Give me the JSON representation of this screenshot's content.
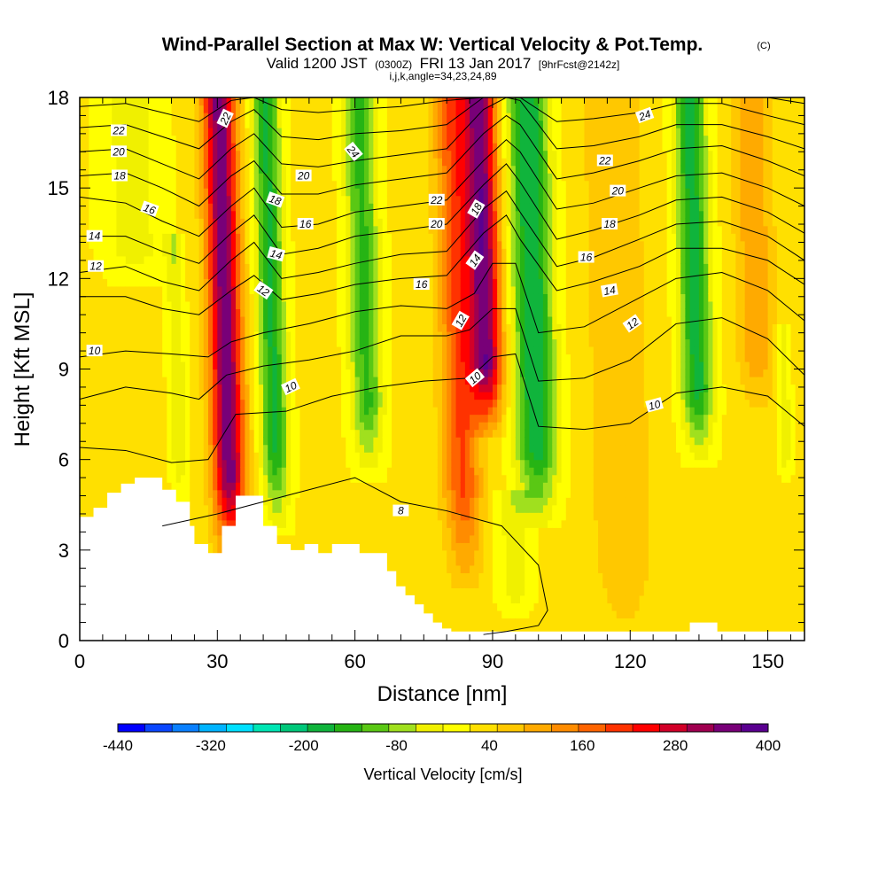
{
  "header": {
    "title": "Wind-Parallel Section at Max W: Vertical Velocity & Pot.Temp.",
    "copyright": "(C)",
    "valid_prefix": "Valid 1200 JST",
    "valid_utc": "(0300Z)",
    "valid_date": "FRI 13 Jan 2017",
    "forecast": "[9hrFcst@2142z]",
    "indices": "i,j,k,angle=34,23,24,89"
  },
  "chart_data": {
    "type": "heatmap",
    "xlabel": "Distance [nm]",
    "ylabel": "Height [Kft MSL]",
    "xlim": [
      0,
      158
    ],
    "ylim": [
      0,
      18
    ],
    "xticks": [
      "0",
      "30",
      "60",
      "90",
      "120",
      "150"
    ],
    "xtick_values": [
      0,
      30,
      60,
      90,
      120,
      150
    ],
    "yticks": [
      "0",
      "3",
      "6",
      "9",
      "12",
      "15",
      "18"
    ],
    "ytick_values": [
      0,
      3,
      6,
      9,
      12,
      15,
      18
    ],
    "field": "Vertical Velocity [cm/s]",
    "colorbar": {
      "title": "Vertical Velocity [cm/s]",
      "ticks": [
        "-440",
        "-320",
        "-200",
        "-80",
        "40",
        "160",
        "280",
        "400"
      ],
      "tick_values": [
        -440,
        -320,
        -200,
        -80,
        40,
        160,
        280,
        400
      ],
      "colors": [
        "#0000ff",
        "#0a46ff",
        "#0a80ff",
        "#00b4ff",
        "#00e0ff",
        "#00e6b4",
        "#00c87a",
        "#10b43c",
        "#26b414",
        "#5ac814",
        "#a0e01e",
        "#f0f000",
        "#ffff00",
        "#ffe000",
        "#ffc800",
        "#ffaa00",
        "#ff8c00",
        "#ff6400",
        "#ff3200",
        "#ff0000",
        "#d20028",
        "#a00050",
        "#780078",
        "#5a0090"
      ]
    },
    "velocity_features": [
      {
        "kind": "updraft",
        "x": 33,
        "y_bottom": 3.2,
        "y_top": 18,
        "peak": 330,
        "half_width": 3.5
      },
      {
        "kind": "downdraft",
        "x": 43,
        "y_bottom": 4.2,
        "y_top": 18,
        "peak": -190,
        "half_width": 3.0
      },
      {
        "kind": "downdraft",
        "x": 22,
        "y_bottom": 4.8,
        "y_top": 13,
        "peak": -70,
        "half_width": 2.0
      },
      {
        "kind": "downdraft",
        "x": 12,
        "y_bottom": 12,
        "y_top": 18,
        "peak": -60,
        "half_width": 7.0
      },
      {
        "kind": "downdraft",
        "x": 63,
        "y_bottom": 6.0,
        "y_top": 18,
        "peak": -160,
        "half_width": 3.5
      },
      {
        "kind": "updraft",
        "x": 84,
        "y_bottom": 2.5,
        "y_top": 18,
        "peak": 170,
        "half_width": 4.0
      },
      {
        "kind": "updraft",
        "x": 89,
        "y_bottom": 7.5,
        "y_top": 18,
        "peak": 320,
        "half_width": 3.5
      },
      {
        "kind": "downdraft",
        "x": 100,
        "y_bottom": 4.5,
        "y_top": 18,
        "peak": -220,
        "half_width": 4.5
      },
      {
        "kind": "downdraft",
        "x": 95,
        "y_bottom": 1.0,
        "y_top": 4.5,
        "peak": -60,
        "half_width": 4.0
      },
      {
        "kind": "updraft",
        "x": 119,
        "y_bottom": 0.3,
        "y_top": 18,
        "peak": 50,
        "half_width": 7.0
      },
      {
        "kind": "downdraft",
        "x": 135,
        "y_bottom": 6.5,
        "y_top": 18,
        "peak": -200,
        "half_width": 3.5
      },
      {
        "kind": "updraft",
        "x": 148,
        "y_bottom": 8,
        "y_top": 18,
        "peak": 90,
        "half_width": 4.0
      },
      {
        "kind": "downdraft",
        "x": 154,
        "y_bottom": 5.5,
        "y_top": 10,
        "peak": -70,
        "half_width": 1.5
      }
    ],
    "terrain": {
      "x": [
        0,
        3,
        3,
        6,
        6,
        9,
        9,
        12,
        12,
        18,
        18,
        21,
        21,
        24,
        24,
        25,
        25,
        28,
        28,
        31,
        31,
        34,
        34,
        40,
        40,
        43,
        43,
        46,
        46,
        49,
        49,
        52,
        52,
        55,
        55,
        61,
        61,
        67,
        67,
        69,
        69,
        71,
        71,
        73,
        73,
        75,
        75,
        77,
        77,
        79,
        79,
        81,
        81,
        133,
        133,
        139,
        139,
        158
      ],
      "y": [
        4.1,
        4.1,
        4.4,
        4.4,
        4.9,
        4.9,
        5.2,
        5.2,
        5.4,
        5.4,
        5.0,
        5.0,
        4.6,
        4.6,
        3.8,
        3.8,
        3.2,
        3.2,
        2.9,
        2.9,
        3.8,
        3.8,
        4.8,
        4.8,
        3.8,
        3.8,
        3.2,
        3.2,
        3.0,
        3.0,
        3.2,
        3.2,
        2.9,
        2.9,
        3.2,
        3.2,
        2.9,
        2.9,
        2.3,
        2.3,
        1.8,
        1.8,
        1.5,
        1.5,
        1.2,
        1.2,
        0.9,
        0.9,
        0.6,
        0.6,
        0.4,
        0.4,
        0.3,
        0.3,
        0.6,
        0.6,
        0.3,
        0.3
      ]
    },
    "theta_contours": [
      {
        "value": "8",
        "x": [
          18,
          30,
          45,
          60,
          70,
          80,
          92,
          100,
          102,
          100,
          93,
          88
        ],
        "y": [
          3.8,
          4.2,
          4.8,
          5.4,
          4.6,
          4.3,
          3.8,
          2.5,
          1.0,
          0.5,
          0.3,
          0.2
        ]
      },
      {
        "value": "10",
        "x": [
          0,
          10,
          20,
          28,
          34,
          45,
          55,
          65,
          75,
          85,
          90,
          95,
          100,
          110,
          120,
          130,
          140,
          150,
          158
        ],
        "y": [
          6.4,
          6.3,
          5.9,
          6.0,
          7.5,
          7.6,
          8.1,
          8.4,
          8.6,
          8.7,
          9.4,
          9.5,
          7.1,
          7.0,
          7.2,
          8.2,
          8.4,
          8.1,
          7.1
        ]
      },
      {
        "value": "10b",
        "x": [
          0,
          10,
          20,
          26,
          32,
          40,
          50,
          60,
          70,
          80,
          85,
          90,
          95,
          100,
          110,
          120,
          130,
          140,
          150,
          158
        ],
        "y": [
          8.0,
          8.4,
          8.2,
          8.0,
          8.8,
          9.1,
          9.3,
          9.6,
          10.1,
          10.1,
          10.3,
          11.0,
          11.0,
          8.6,
          8.7,
          9.3,
          10.5,
          10.7,
          10.0,
          8.8
        ]
      },
      {
        "value": "10",
        "x": [
          0,
          10,
          20,
          28,
          33,
          40,
          50,
          60,
          70,
          80,
          86,
          90,
          95,
          100,
          110,
          120,
          130,
          140,
          150,
          158
        ],
        "y": [
          9.4,
          9.6,
          9.5,
          9.4,
          9.9,
          10.2,
          10.5,
          10.9,
          11.1,
          11.0,
          11.5,
          12.5,
          12.5,
          10.2,
          10.4,
          11.2,
          12.0,
          12.2,
          11.6,
          10.6
        ]
      },
      {
        "value": "12",
        "x": [
          0,
          10,
          18,
          26,
          33,
          38,
          44,
          52,
          60,
          70,
          80,
          88,
          93,
          96,
          104,
          112,
          122,
          130,
          140,
          150,
          158
        ],
        "y": [
          11.4,
          11.4,
          11.0,
          10.8,
          11.6,
          12.1,
          11.3,
          11.5,
          11.8,
          12.0,
          12.1,
          13.5,
          14.1,
          13.3,
          11.6,
          11.9,
          12.4,
          13.0,
          13.0,
          12.6,
          11.8
        ]
      },
      {
        "value": "12b",
        "x": [
          0,
          10,
          18,
          26,
          33,
          38,
          44,
          52,
          60,
          70,
          80,
          88,
          93,
          96,
          104,
          112,
          122,
          130,
          140,
          150,
          158
        ],
        "y": [
          12.2,
          12.4,
          11.9,
          11.6,
          12.6,
          13.2,
          12.0,
          12.2,
          12.5,
          12.8,
          12.9,
          14.3,
          14.9,
          14.2,
          12.4,
          12.7,
          13.3,
          13.8,
          13.9,
          13.4,
          12.6
        ]
      },
      {
        "value": "14",
        "x": [
          0,
          10,
          18,
          26,
          33,
          38,
          44,
          52,
          60,
          70,
          80,
          88,
          93,
          96,
          104,
          112,
          122,
          130,
          140,
          150,
          158
        ],
        "y": [
          13.4,
          13.4,
          12.9,
          12.5,
          13.5,
          14.1,
          12.8,
          13.0,
          13.4,
          13.6,
          13.8,
          15.1,
          15.8,
          15.2,
          13.3,
          13.6,
          14.1,
          14.6,
          14.7,
          14.2,
          13.5
        ]
      },
      {
        "value": "16",
        "x": [
          0,
          10,
          18,
          26,
          33,
          38,
          44,
          52,
          60,
          70,
          80,
          88,
          93,
          96,
          104,
          112,
          122,
          130,
          140,
          150,
          158
        ],
        "y": [
          14.7,
          14.5,
          13.9,
          13.4,
          14.4,
          15.0,
          13.7,
          13.8,
          14.2,
          14.4,
          14.6,
          15.9,
          16.6,
          16.2,
          14.3,
          14.5,
          15.0,
          15.4,
          15.5,
          15.0,
          14.4
        ]
      },
      {
        "value": "18",
        "x": [
          0,
          10,
          18,
          26,
          33,
          38,
          44,
          52,
          60,
          70,
          80,
          88,
          93,
          96,
          104,
          112,
          122,
          130,
          140,
          150,
          158
        ],
        "y": [
          15.4,
          15.5,
          15.0,
          14.4,
          15.4,
          15.9,
          14.8,
          14.8,
          15.1,
          15.3,
          15.5,
          16.8,
          17.4,
          17.1,
          15.3,
          15.5,
          15.9,
          16.3,
          16.4,
          15.9,
          15.4
        ]
      },
      {
        "value": "20",
        "x": [
          0,
          10,
          18,
          26,
          33,
          38,
          44,
          52,
          60,
          70,
          80,
          88,
          93,
          96,
          104,
          112,
          122,
          130,
          140,
          150,
          158
        ],
        "y": [
          16.2,
          16.3,
          15.8,
          15.3,
          16.3,
          16.8,
          15.8,
          15.7,
          15.9,
          16.1,
          16.3,
          17.6,
          18.0,
          17.9,
          16.3,
          16.4,
          16.7,
          17.1,
          17.1,
          16.7,
          16.3
        ]
      },
      {
        "value": "22",
        "x": [
          0,
          10,
          18,
          26,
          33,
          38,
          44,
          52,
          60,
          70,
          80,
          88,
          93,
          96,
          104,
          112,
          122,
          130,
          140,
          150,
          158
        ],
        "y": [
          17.0,
          17.1,
          16.7,
          16.3,
          17.2,
          17.6,
          16.7,
          16.6,
          16.8,
          16.9,
          17.1,
          18.0,
          18.0,
          18.0,
          17.2,
          17.3,
          17.5,
          17.8,
          17.8,
          17.4,
          17.1
        ]
      },
      {
        "value": "24",
        "x": [
          0,
          10,
          18,
          26,
          33,
          38,
          44,
          52,
          60,
          70,
          80,
          88,
          93,
          96,
          104,
          112,
          122,
          130,
          140,
          150,
          158
        ],
        "y": [
          17.7,
          17.8,
          17.5,
          17.2,
          17.9,
          18.0,
          17.6,
          17.5,
          17.6,
          17.7,
          17.9,
          18.0,
          18.0,
          18.0,
          18.0,
          18.0,
          18.0,
          18.0,
          18.0,
          18.0,
          17.8
        ]
      }
    ],
    "contour_labels": [
      {
        "text": "22",
        "x": 8.5,
        "y": 16.9,
        "angle": 0
      },
      {
        "text": "20",
        "x": 8.5,
        "y": 16.2,
        "angle": 0
      },
      {
        "text": "18",
        "x": 8.7,
        "y": 15.4,
        "angle": 0
      },
      {
        "text": "16",
        "x": 15.2,
        "y": 14.3,
        "angle": 20
      },
      {
        "text": "14",
        "x": 3.2,
        "y": 13.4,
        "angle": 0
      },
      {
        "text": "12",
        "x": 3.5,
        "y": 12.4,
        "angle": 0
      },
      {
        "text": "10",
        "x": 3.2,
        "y": 9.6,
        "angle": 0
      },
      {
        "text": "22",
        "x": 31.8,
        "y": 17.3,
        "angle": -65
      },
      {
        "text": "24",
        "x": 59.6,
        "y": 16.2,
        "angle": 50
      },
      {
        "text": "20",
        "x": 48.8,
        "y": 15.4,
        "angle": 0
      },
      {
        "text": "18",
        "x": 42.6,
        "y": 14.6,
        "angle": 20
      },
      {
        "text": "16",
        "x": 49.2,
        "y": 13.8,
        "angle": 0
      },
      {
        "text": "14",
        "x": 42.8,
        "y": 12.8,
        "angle": 15
      },
      {
        "text": "12",
        "x": 40.0,
        "y": 11.6,
        "angle": 35
      },
      {
        "text": "10",
        "x": 46.0,
        "y": 8.4,
        "angle": -25
      },
      {
        "text": "8",
        "x": 70.0,
        "y": 4.3,
        "angle": 0
      },
      {
        "text": "22",
        "x": 77.8,
        "y": 14.6,
        "angle": 0
      },
      {
        "text": "20",
        "x": 77.8,
        "y": 13.8,
        "angle": 0
      },
      {
        "text": "18",
        "x": 86.5,
        "y": 14.3,
        "angle": -60
      },
      {
        "text": "16",
        "x": 74.5,
        "y": 11.8,
        "angle": 0
      },
      {
        "text": "14",
        "x": 86.2,
        "y": 12.6,
        "angle": -55
      },
      {
        "text": "12",
        "x": 83.1,
        "y": 10.6,
        "angle": -60
      },
      {
        "text": "10",
        "x": 86.2,
        "y": 8.7,
        "angle": -40
      },
      {
        "text": "24",
        "x": 123.2,
        "y": 17.4,
        "angle": -20
      },
      {
        "text": "22",
        "x": 114.5,
        "y": 15.9,
        "angle": 0
      },
      {
        "text": "20",
        "x": 117.3,
        "y": 14.9,
        "angle": 0
      },
      {
        "text": "18",
        "x": 115.5,
        "y": 13.8,
        "angle": 0
      },
      {
        "text": "16",
        "x": 110.4,
        "y": 12.7,
        "angle": 0
      },
      {
        "text": "14",
        "x": 115.5,
        "y": 11.6,
        "angle": -10
      },
      {
        "text": "12",
        "x": 120.5,
        "y": 10.5,
        "angle": -35
      },
      {
        "text": "10",
        "x": 125.3,
        "y": 7.8,
        "angle": -15
      }
    ]
  }
}
